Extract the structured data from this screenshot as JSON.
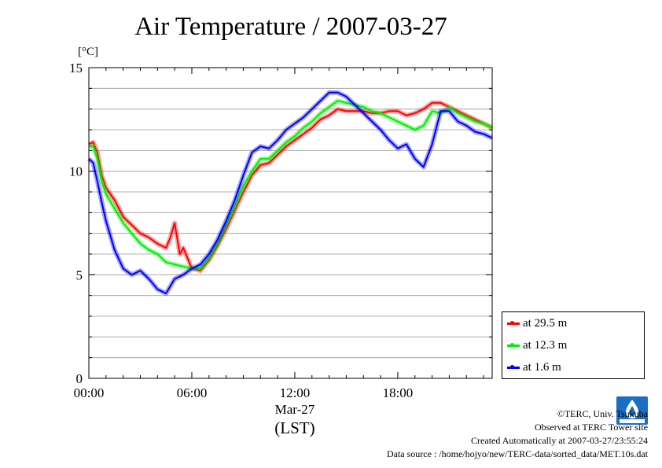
{
  "title": "Air Temperature / 2007-03-27",
  "unit_label": "[°C]",
  "date_label": "Mar-27",
  "time_zone_label": "(LST)",
  "legend": [
    {
      "label": "at 29.5 m",
      "color": "#ff0000"
    },
    {
      "label": "at 12.3 m",
      "color": "#00ee00"
    },
    {
      "label": "at 1.6 m",
      "color": "#0000ff"
    }
  ],
  "footer": {
    "copyright": "©TERC, Univ. Tsukuba",
    "observed": "Observed at TERC Tower site",
    "created": "Created Automatically at 2007-03-27/23:55:24",
    "source": "Data source : /home/hojyo/new/TERC-data/sorted_data/MET.10s.dat"
  },
  "chart_data": {
    "type": "line",
    "title": "Air Temperature / 2007-03-27",
    "ylabel": "[°C]",
    "xlabel": "Mar-27 (LST)",
    "xlim": [
      0,
      23.5
    ],
    "ylim": [
      0,
      15
    ],
    "x_ticks": [
      {
        "value": 0,
        "label": "00:00"
      },
      {
        "value": 6,
        "label": "06:00"
      },
      {
        "value": 12,
        "label": "12:00"
      },
      {
        "value": 18,
        "label": "18:00"
      }
    ],
    "y_ticks": [
      {
        "value": 0,
        "label": "0"
      },
      {
        "value": 5,
        "label": "5"
      },
      {
        "value": 10,
        "label": "10"
      },
      {
        "value": 15,
        "label": "15"
      }
    ],
    "grid": true,
    "legend_position": "bottom-right, outside plot",
    "series": [
      {
        "name": "at 29.5 m",
        "color": "#ff0000",
        "x": [
          0,
          0.25,
          0.5,
          0.75,
          1,
          1.5,
          2,
          2.5,
          3,
          3.5,
          4,
          4.5,
          4.75,
          5,
          5.3,
          5.5,
          6,
          6.5,
          7,
          7.5,
          8,
          8.5,
          9,
          9.5,
          10,
          10.5,
          11,
          11.5,
          12,
          12.5,
          13,
          13.5,
          14,
          14.5,
          15,
          15.5,
          16,
          16.5,
          17,
          17.5,
          18,
          18.5,
          19,
          19.5,
          20,
          20.5,
          21,
          21.5,
          22,
          22.5,
          23,
          23.5
        ],
        "y": [
          11.3,
          11.4,
          10.9,
          9.8,
          9.2,
          8.6,
          7.8,
          7.4,
          7.0,
          6.8,
          6.5,
          6.3,
          6.8,
          7.5,
          6.0,
          6.3,
          5.3,
          5.2,
          5.7,
          6.4,
          7.2,
          8.1,
          9.0,
          9.8,
          10.3,
          10.4,
          10.8,
          11.2,
          11.5,
          11.8,
          12.1,
          12.5,
          12.7,
          13.0,
          12.9,
          12.9,
          12.9,
          12.8,
          12.8,
          12.9,
          12.9,
          12.7,
          12.8,
          13.0,
          13.3,
          13.3,
          13.1,
          12.9,
          12.7,
          12.5,
          12.3,
          12.1
        ]
      },
      {
        "name": "at 12.3 m",
        "color": "#00ee00",
        "x": [
          0,
          0.25,
          0.5,
          0.75,
          1,
          1.5,
          2,
          2.5,
          3,
          3.5,
          4,
          4.5,
          5,
          5.5,
          6,
          6.5,
          7,
          7.5,
          8,
          8.5,
          9,
          9.5,
          10,
          10.5,
          11,
          11.5,
          12,
          12.5,
          13,
          13.5,
          14,
          14.5,
          15,
          15.5,
          16,
          16.5,
          17,
          17.5,
          18,
          18.5,
          19,
          19.5,
          20,
          20.5,
          21,
          21.5,
          22,
          22.5,
          23,
          23.5
        ],
        "y": [
          11.2,
          11.2,
          10.6,
          9.5,
          8.9,
          8.2,
          7.5,
          7.0,
          6.5,
          6.2,
          6.0,
          5.6,
          5.5,
          5.4,
          5.3,
          5.3,
          5.8,
          6.5,
          7.4,
          8.3,
          9.3,
          10.0,
          10.6,
          10.6,
          11.0,
          11.4,
          11.7,
          12.1,
          12.4,
          12.8,
          13.1,
          13.4,
          13.3,
          13.2,
          13.1,
          12.9,
          12.8,
          12.6,
          12.4,
          12.2,
          12.0,
          12.2,
          12.9,
          12.8,
          13.1,
          12.8,
          12.6,
          12.4,
          12.3,
          12.1
        ]
      },
      {
        "name": "at 1.6 m",
        "color": "#0000ff",
        "x": [
          0,
          0.25,
          0.5,
          0.75,
          1,
          1.5,
          2,
          2.5,
          3,
          3.5,
          4,
          4.5,
          5,
          5.5,
          6,
          6.5,
          7,
          7.5,
          8,
          8.5,
          9,
          9.5,
          10,
          10.5,
          11,
          11.5,
          12,
          12.5,
          13,
          13.5,
          14,
          14.5,
          15,
          15.5,
          16,
          16.5,
          17,
          17.5,
          18,
          18.5,
          19,
          19.5,
          20,
          20.5,
          21,
          21.5,
          22,
          22.5,
          23,
          23.5
        ],
        "y": [
          10.6,
          10.4,
          9.5,
          8.5,
          7.6,
          6.2,
          5.3,
          5.0,
          5.2,
          4.8,
          4.3,
          4.1,
          4.8,
          5.0,
          5.3,
          5.5,
          6.0,
          6.7,
          7.6,
          8.6,
          9.8,
          10.9,
          11.2,
          11.1,
          11.5,
          12.0,
          12.3,
          12.6,
          13.0,
          13.4,
          13.8,
          13.8,
          13.6,
          13.2,
          12.8,
          12.4,
          12.0,
          11.5,
          11.1,
          11.3,
          10.6,
          10.2,
          11.3,
          12.9,
          12.9,
          12.4,
          12.2,
          11.9,
          11.8,
          11.6
        ]
      }
    ]
  }
}
